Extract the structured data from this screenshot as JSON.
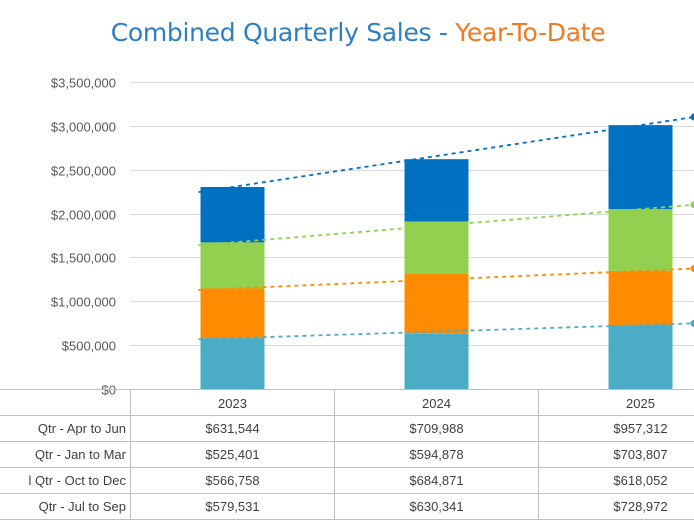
{
  "chart_data": {
    "type": "bar",
    "stacked": true,
    "title": "Combined Quarterly Sales",
    "title_separator": " - ",
    "subtitle": "Year-To-Date",
    "categories": [
      "2023",
      "2024",
      "2025"
    ],
    "ylim": [
      0,
      3500000
    ],
    "yticks": [
      "$0",
      "$500,000",
      "$1,000,000",
      "$1,500,000",
      "$2,000,000",
      "$2,500,000",
      "$3,000,000",
      "$3,500,000"
    ],
    "grid": true,
    "series": [
      {
        "name": "Qtr - Jul to Sep",
        "label_visible": "Qtr - Jul to Sep",
        "color": "#4bacc6",
        "values": [
          579531,
          630341,
          728972
        ],
        "display": [
          "$579,531",
          "$630,341",
          "$728,972"
        ]
      },
      {
        "name": "Qtr - Oct to Dec",
        "label_visible": "l Qtr - Oct to Dec",
        "color": "#ff8c00",
        "values": [
          566758,
          684871,
          618052
        ],
        "display": [
          "$566,758",
          "$684,871",
          "$618,052"
        ]
      },
      {
        "name": "Qtr - Jan to Mar",
        "label_visible": "Qtr - Jan to Mar",
        "color": "#92d050",
        "values": [
          525401,
          594878,
          703807
        ],
        "display": [
          "$525,401",
          "$594,878",
          "$703,807"
        ]
      },
      {
        "name": "Qtr - Apr to Jun",
        "label_visible": "Qtr - Apr to Jun",
        "color": "#0070c0",
        "values": [
          631544,
          709988,
          957312
        ],
        "display": [
          "$631,544",
          "$709,988",
          "$957,312"
        ]
      }
    ],
    "table_row_order": [
      3,
      2,
      1,
      0
    ],
    "trendlines": "dashed lines at each stacked segment top"
  }
}
